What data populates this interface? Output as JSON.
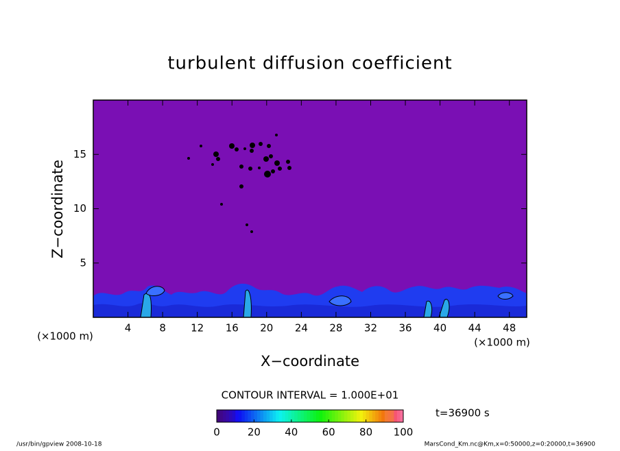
{
  "chart_data": {
    "type": "contour",
    "title": "turbulent diffusion coefficient",
    "xlabel": "X−coordinate",
    "ylabel": "Z−coordinate",
    "xunit": "(×1000 m)",
    "yunit": "(×1000 m)",
    "xlim": [
      0,
      50
    ],
    "ylim": [
      0,
      20
    ],
    "xticks": [
      4,
      8,
      12,
      16,
      20,
      24,
      28,
      32,
      36,
      40,
      44,
      48
    ],
    "yticks": [
      5,
      10,
      15
    ],
    "contour_interval": "CONTOUR INTERVAL = 1.000E+01",
    "time_label": "t=36900 s",
    "colorbar": {
      "lim": [
        0,
        100
      ],
      "ticks": [
        0,
        20,
        40,
        60,
        80,
        100
      ]
    },
    "footer_left": "/usr/bin/gpview  2008-10-18",
    "footer_right": "MarsCond_Km.nc@Km,x=0:50000,z=0:20000,t=36900"
  }
}
